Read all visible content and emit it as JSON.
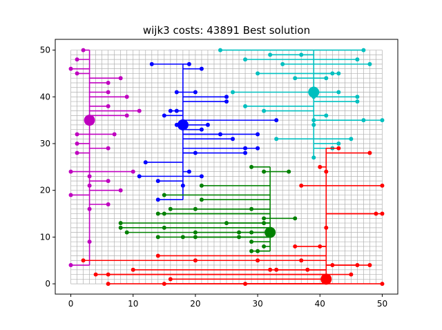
{
  "chart_data": {
    "type": "scatter",
    "title": "wijk3 costs: 43891 Best solution",
    "xlabel": "",
    "ylabel": "",
    "xlim": [
      -2.5,
      52.5
    ],
    "ylim": [
      -2.2,
      52.3
    ],
    "xticks": [
      "0",
      "10",
      "20",
      "30",
      "40",
      "50"
    ],
    "yticks": [
      "0",
      "10",
      "20",
      "30",
      "40",
      "50"
    ],
    "grid": {
      "x_range": [
        0,
        50
      ],
      "y_range": [
        0,
        50
      ],
      "step": 1
    },
    "series": [
      {
        "color": "#bf00bf",
        "battery": [
          3,
          35
        ],
        "trunk": {
          "x": 3,
          "y0": 4,
          "y1": 50
        },
        "houses": [
          [
            2,
            50
          ],
          [
            1,
            48
          ],
          [
            0,
            46
          ],
          [
            1,
            45
          ],
          [
            8,
            44
          ],
          [
            6,
            43
          ],
          [
            6,
            41
          ],
          [
            9,
            40
          ],
          [
            6,
            38
          ],
          [
            11,
            37
          ],
          [
            9,
            36
          ],
          [
            1,
            32
          ],
          [
            7,
            32
          ],
          [
            1,
            30
          ],
          [
            6,
            29
          ],
          [
            1,
            28
          ],
          [
            0,
            24
          ],
          [
            10,
            24
          ],
          [
            3,
            23
          ],
          [
            6,
            22
          ],
          [
            3,
            21
          ],
          [
            8,
            20
          ],
          [
            0,
            19
          ],
          [
            6,
            17
          ],
          [
            3,
            16
          ],
          [
            3,
            9
          ],
          [
            0,
            4
          ]
        ]
      },
      {
        "color": "#0000ff",
        "battery": [
          18,
          34
        ],
        "trunk": {
          "x": 18,
          "y0": 18,
          "y1": 47
        },
        "houses": [
          [
            13,
            47
          ],
          [
            19,
            47
          ],
          [
            21,
            46
          ],
          [
            17,
            41
          ],
          [
            20,
            41
          ],
          [
            25,
            40
          ],
          [
            25,
            39
          ],
          [
            16,
            37
          ],
          [
            17,
            37
          ],
          [
            15,
            36
          ],
          [
            33,
            35
          ],
          [
            22,
            34
          ],
          [
            17,
            34
          ],
          [
            21,
            33
          ],
          [
            24,
            32
          ],
          [
            30,
            32
          ],
          [
            26,
            31
          ],
          [
            28,
            29
          ],
          [
            30,
            29
          ],
          [
            20,
            28
          ],
          [
            28,
            28
          ],
          [
            12,
            26
          ],
          [
            19,
            24
          ],
          [
            11,
            23
          ],
          [
            21,
            23
          ],
          [
            14,
            22
          ],
          [
            18,
            21
          ],
          [
            14,
            18
          ]
        ]
      },
      {
        "color": "#00bfbf",
        "battery": [
          39,
          41
        ],
        "trunk": {
          "x": 39,
          "y0": 27,
          "y1": 50
        },
        "houses": [
          [
            24,
            50
          ],
          [
            47,
            50
          ],
          [
            32,
            49
          ],
          [
            37,
            49
          ],
          [
            28,
            48
          ],
          [
            46,
            48
          ],
          [
            34,
            47
          ],
          [
            48,
            47
          ],
          [
            30,
            45
          ],
          [
            42,
            45
          ],
          [
            43,
            45
          ],
          [
            36,
            44
          ],
          [
            41,
            44
          ],
          [
            26,
            41
          ],
          [
            43,
            41
          ],
          [
            39,
            40
          ],
          [
            46,
            40
          ],
          [
            46,
            39
          ],
          [
            28,
            38
          ],
          [
            31,
            37
          ],
          [
            41,
            36
          ],
          [
            39,
            35
          ],
          [
            47,
            35
          ],
          [
            50,
            35
          ],
          [
            39,
            34
          ],
          [
            33,
            31
          ],
          [
            45,
            31
          ],
          [
            43,
            30
          ],
          [
            42,
            29
          ],
          [
            39,
            27
          ]
        ]
      },
      {
        "color": "#008000",
        "battery": [
          32,
          11
        ],
        "trunk": {
          "x": 32,
          "y0": 7,
          "y1": 25
        },
        "houses": [
          [
            29,
            25
          ],
          [
            31,
            24
          ],
          [
            35,
            24
          ],
          [
            21,
            21
          ],
          [
            15,
            19
          ],
          [
            21,
            18
          ],
          [
            16,
            16
          ],
          [
            20,
            16
          ],
          [
            29,
            16
          ],
          [
            14,
            15
          ],
          [
            15,
            15
          ],
          [
            31,
            14
          ],
          [
            36,
            14
          ],
          [
            8,
            13
          ],
          [
            25,
            13
          ],
          [
            31,
            13
          ],
          [
            8,
            12
          ],
          [
            15,
            12
          ],
          [
            9,
            11
          ],
          [
            20,
            11
          ],
          [
            27,
            11
          ],
          [
            29,
            11
          ],
          [
            14,
            10
          ],
          [
            18,
            10
          ],
          [
            20,
            10
          ],
          [
            27,
            10
          ],
          [
            29,
            9
          ],
          [
            31,
            8
          ],
          [
            29,
            7
          ],
          [
            30,
            7
          ]
        ]
      },
      {
        "color": "#ff0000",
        "battery": [
          41,
          1
        ],
        "trunk": {
          "x": 41,
          "y0": 1,
          "y1": 29
        },
        "houses": [
          [
            43,
            29
          ],
          [
            48,
            28
          ],
          [
            40,
            25
          ],
          [
            41,
            24
          ],
          [
            37,
            21
          ],
          [
            50,
            21
          ],
          [
            49,
            15
          ],
          [
            50,
            15
          ],
          [
            41,
            12
          ],
          [
            36,
            8
          ],
          [
            40,
            8
          ],
          [
            14,
            6
          ],
          [
            20,
            5
          ],
          [
            2,
            5
          ],
          [
            30,
            5
          ],
          [
            37,
            5
          ],
          [
            42,
            4
          ],
          [
            46,
            4
          ],
          [
            48,
            4
          ],
          [
            10,
            3
          ],
          [
            32,
            3
          ],
          [
            33,
            3
          ],
          [
            38,
            3
          ],
          [
            4,
            2
          ],
          [
            6,
            2
          ],
          [
            45,
            2
          ],
          [
            16,
            1
          ],
          [
            6,
            0
          ],
          [
            15,
            0
          ],
          [
            28,
            0
          ],
          [
            50,
            0
          ]
        ]
      }
    ]
  }
}
